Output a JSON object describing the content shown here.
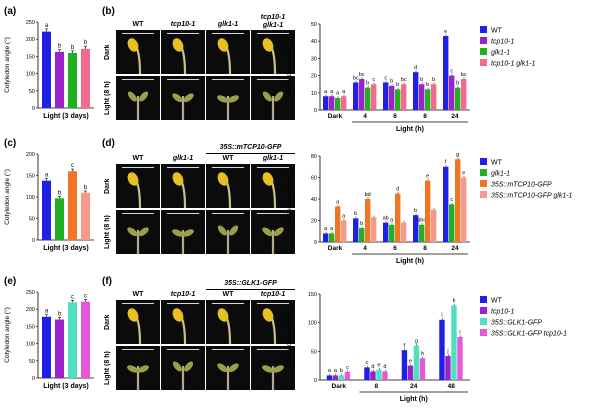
{
  "panels": {
    "a": "(a)",
    "b": "(b)",
    "c": "(c)",
    "d": "(d)",
    "e": "(e)",
    "f": "(f)"
  },
  "colors": {
    "wt": "#1f1fe6",
    "tcp10": "#9a22c8",
    "glk1": "#22b022",
    "double": "#f46a8e",
    "mtcp10": "#f07524",
    "mtcp10_glk1": "#f59a8a",
    "glk1gfp": "#4fe0c0",
    "glk1gfp_tcp10": "#e558d8"
  },
  "photo_rows": {
    "dark": "Dark",
    "light": "Light (8 h)"
  },
  "photos": {
    "b": {
      "headers": [
        "WT",
        "tcp10-1",
        "glk1-1",
        "tcp10-1\nglk1-1"
      ],
      "construct": ""
    },
    "d": {
      "headers": [
        "WT",
        "glk1-1",
        "WT",
        "glk1-1"
      ],
      "construct": "35S::mTCP10-GFP"
    },
    "f": {
      "headers": [
        "WT",
        "tcp10-1",
        "WT",
        "tcp10-1"
      ],
      "construct": "35S::GLK1-GFP"
    }
  },
  "chart_data": [
    {
      "id": "a",
      "type": "bar",
      "ylabel": "Cotyledon angle (°)",
      "xlabel": "Light (3 days)",
      "ylim": [
        0,
        250
      ],
      "yticks": [
        0,
        50,
        100,
        150,
        200,
        250
      ],
      "series": [
        {
          "name": "WT",
          "value": 222,
          "err": 8,
          "letter": "a"
        },
        {
          "name": "tcp10-1",
          "value": 163,
          "err": 7,
          "letter": "b"
        },
        {
          "name": "glk1-1",
          "value": 160,
          "err": 6,
          "letter": "b"
        },
        {
          "name": "tcp10-1 glk1-1",
          "value": 172,
          "err": 8,
          "letter": "b"
        }
      ]
    },
    {
      "id": "b",
      "type": "bar",
      "ylabel": "Cotyledon angle (°)",
      "xlabel": "Light (h)",
      "ylim": [
        0,
        50
      ],
      "yticks": [
        0,
        10,
        20,
        30,
        40,
        50
      ],
      "categories": [
        "Dark",
        "4",
        "6",
        "8",
        "24"
      ],
      "legend": [
        "WT",
        "tcp10-1",
        "glk1-1",
        "tcp10-1 glk1-1"
      ],
      "series": [
        {
          "name": "WT",
          "values": [
            8,
            16,
            16,
            22,
            43
          ],
          "letters": [
            "a",
            "bc",
            "c",
            "d",
            "e"
          ]
        },
        {
          "name": "tcp10-1",
          "values": [
            8,
            18,
            14,
            15,
            20
          ],
          "letters": [
            "a",
            "bc",
            "b",
            "b",
            "c"
          ]
        },
        {
          "name": "glk1-1",
          "values": [
            7,
            13,
            12,
            12,
            13
          ],
          "letters": [
            "a",
            "b",
            "b",
            "b",
            "b"
          ]
        },
        {
          "name": "tcp10-1 glk1-1",
          "values": [
            8,
            15,
            15,
            15,
            18
          ],
          "letters": [
            "a",
            "c",
            "bc",
            "b",
            "bc"
          ]
        }
      ]
    },
    {
      "id": "c",
      "type": "bar",
      "ylabel": "Cotyledon angle (°)",
      "xlabel": "Light (3 days)",
      "ylim": [
        0,
        200
      ],
      "yticks": [
        0,
        50,
        100,
        150,
        200
      ],
      "series": [
        {
          "name": "WT",
          "value": 138,
          "err": 5,
          "letter": "a"
        },
        {
          "name": "glk1-1",
          "value": 97,
          "err": 4,
          "letter": "b"
        },
        {
          "name": "35S::mTCP10-GFP",
          "value": 160,
          "err": 5,
          "letter": "c"
        },
        {
          "name": "35S::mTCP10-GFP glk1-1",
          "value": 110,
          "err": 4,
          "letter": "b"
        }
      ]
    },
    {
      "id": "d",
      "type": "bar",
      "ylabel": "Cotyledon angle (°)",
      "xlabel": "Light (h)",
      "ylim": [
        0,
        80
      ],
      "yticks": [
        0,
        20,
        40,
        60,
        80
      ],
      "categories": [
        "Dark",
        "4",
        "6",
        "8",
        "24"
      ],
      "legend": [
        "WT",
        "glk1-1",
        "35S::mTCP10-GFP",
        "35S::mTCP10-GFP glk1-1"
      ],
      "series": [
        {
          "name": "WT",
          "values": [
            8,
            22,
            18,
            25,
            70
          ],
          "letters": [
            "a",
            "b",
            "ab",
            "b",
            "f"
          ]
        },
        {
          "name": "glk1-1",
          "values": [
            8,
            13,
            16,
            16,
            35
          ],
          "letters": [
            "a",
            "b",
            "a",
            "abc",
            "c"
          ]
        },
        {
          "name": "35S::mTCP10-GFP",
          "values": [
            33,
            40,
            45,
            57,
            77
          ],
          "letters": [
            "a",
            "bd",
            "d",
            "e",
            "g"
          ]
        },
        {
          "name": "35S::mTCP10-GFP glk1-1",
          "values": [
            20,
            23,
            18,
            30,
            60
          ],
          "letters": [
            "a",
            "",
            "",
            "",
            "e"
          ]
        }
      ]
    },
    {
      "id": "e",
      "type": "bar",
      "ylabel": "Cotyledon angle (°)",
      "xlabel": "Light (3 days)",
      "ylim": [
        0,
        250
      ],
      "yticks": [
        0,
        50,
        100,
        150,
        200,
        250
      ],
      "series": [
        {
          "name": "WT",
          "value": 178,
          "err": 6,
          "letter": "a"
        },
        {
          "name": "tcp10-1",
          "value": 170,
          "err": 6,
          "letter": "b"
        },
        {
          "name": "35S::GLK1-GFP",
          "value": 220,
          "err": 6,
          "letter": "c"
        },
        {
          "name": "35S::GLK1-GFP tcp10-1",
          "value": 222,
          "err": 6,
          "letter": "c"
        }
      ]
    },
    {
      "id": "f",
      "type": "bar",
      "ylabel": "Cotyledon angle (°)",
      "xlabel": "Light (h)",
      "ylim": [
        0,
        150
      ],
      "yticks": [
        0,
        50,
        100,
        150
      ],
      "categories": [
        "Dark",
        "8",
        "24",
        "48"
      ],
      "legend": [
        "WT",
        "tcp10-1",
        "35S::GLK1-GFP",
        "35S::GLK1-GFP tcp10-1"
      ],
      "series": [
        {
          "name": "WT",
          "values": [
            8,
            22,
            52,
            105
          ],
          "letters": [
            "a",
            "c",
            "f",
            "i"
          ]
        },
        {
          "name": "tcp10-1",
          "values": [
            8,
            15,
            25,
            42
          ],
          "letters": [
            "a",
            "d",
            "e",
            "j"
          ]
        },
        {
          "name": "35S::GLK1-GFP",
          "values": [
            8,
            18,
            60,
            130
          ],
          "letters": [
            "b",
            "e",
            "g",
            "k"
          ]
        },
        {
          "name": "35S::GLK1-GFP tcp10-1",
          "values": [
            14,
            15,
            38,
            75
          ],
          "letters": [
            "c",
            "d",
            "h",
            "l"
          ]
        }
      ]
    }
  ]
}
